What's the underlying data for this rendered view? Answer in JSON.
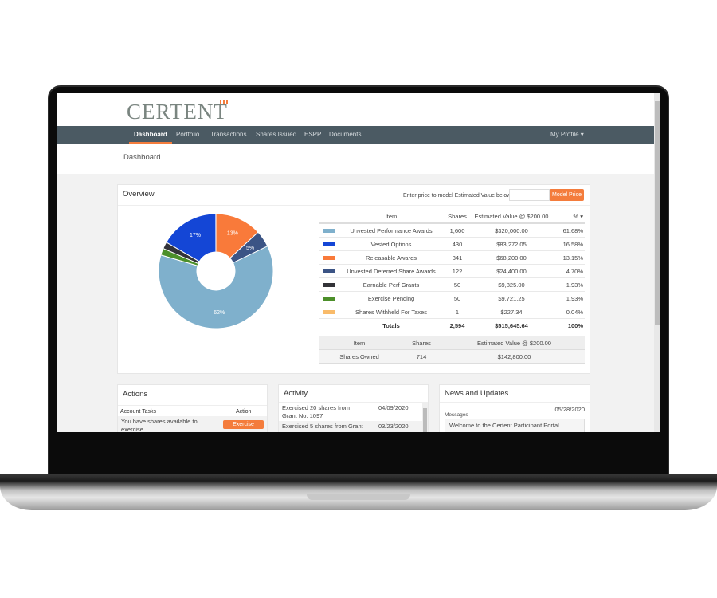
{
  "brand": {
    "logo": "CERTENT"
  },
  "nav": {
    "items": [
      "Dashboard",
      "Portfolio",
      "Transactions",
      "Shares Issued",
      "ESPP",
      "Documents"
    ],
    "active": "Dashboard",
    "profile": "My Profile ▾"
  },
  "page_title": "Dashboard",
  "overview": {
    "title": "Overview",
    "price_prompt": "Enter price to model Estimated Value below:",
    "price_value": "",
    "model_button": "Model Price",
    "columns": [
      "Item",
      "Shares",
      "Estimated Value @ $200.00",
      "% ▾"
    ],
    "rows": [
      {
        "color": "#7fb0cc",
        "item": "Unvested Performance Awards",
        "shares": "1,600",
        "value": "$320,000.00",
        "pct": "61.68%"
      },
      {
        "color": "#1446d6",
        "item": "Vested Options",
        "shares": "430",
        "value": "$83,272.05",
        "pct": "16.58%"
      },
      {
        "color": "#f97a3a",
        "item": "Releasable Awards",
        "shares": "341",
        "value": "$68,200.00",
        "pct": "13.15%"
      },
      {
        "color": "#3b5485",
        "item": "Unvested Deferred Share Awards",
        "shares": "122",
        "value": "$24,400.00",
        "pct": "4.70%"
      },
      {
        "color": "#333338",
        "item": "Earnable Perf Grants",
        "shares": "50",
        "value": "$9,825.00",
        "pct": "1.93%"
      },
      {
        "color": "#4c8f2a",
        "item": "Exercise Pending",
        "shares": "50",
        "value": "$9,721.25",
        "pct": "1.93%"
      },
      {
        "color": "#f9bb6a",
        "item": "Shares Withheld For Taxes",
        "shares": "1",
        "value": "$227.34",
        "pct": "0.04%"
      }
    ],
    "totals": {
      "label": "Totals",
      "shares": "2,594",
      "value": "$515,645.64",
      "pct": "100%"
    },
    "owned_columns": [
      "Item",
      "Shares",
      "Estimated Value @ $200.00"
    ],
    "owned_row": {
      "item": "Shares Owned",
      "shares": "714",
      "value": "$142,800.00"
    },
    "pie_labels": {
      "releasable": "13%",
      "deferred": "5%",
      "performance": "62%",
      "vested": "17%"
    }
  },
  "actions": {
    "title": "Actions",
    "col_task": "Account Tasks",
    "col_action": "Action",
    "task": "You have shares available to exercise",
    "button": "Exercise"
  },
  "activity": {
    "title": "Activity",
    "items": [
      {
        "text": "Exercised 20 shares from Grant No. 1097",
        "date": "04/09/2020"
      },
      {
        "text": "Exercised 5 shares from Grant",
        "date": "03/23/2020"
      }
    ]
  },
  "news": {
    "title": "News and Updates",
    "date": "05/28/2020",
    "messages_label": "Messages",
    "message": "Welcome to the Certent Participant Portal"
  }
}
